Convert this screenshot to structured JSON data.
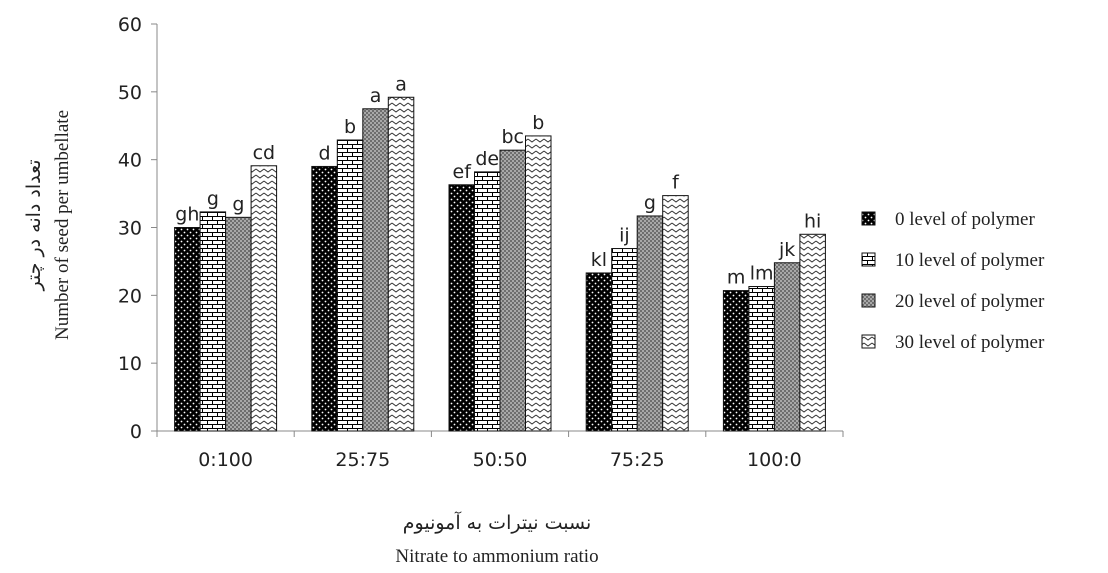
{
  "chart_data": {
    "type": "bar",
    "categories": [
      "0:100",
      "25:75",
      "50:50",
      "75:25",
      "100:0"
    ],
    "series": [
      {
        "name": "0 level of polymer",
        "values": [
          30,
          39,
          36.3,
          23.3,
          20.7
        ],
        "letters": [
          "gh",
          "d",
          "ef",
          "kl",
          "m"
        ]
      },
      {
        "name": "10 level of polymer",
        "values": [
          32.3,
          42.9,
          38.2,
          26.9,
          21.3
        ],
        "letters": [
          "g",
          "b",
          "de",
          "ij",
          "lm"
        ]
      },
      {
        "name": "20 level of polymer",
        "values": [
          31.5,
          47.5,
          41.4,
          31.7,
          24.8
        ],
        "letters": [
          "g",
          "a",
          "bc",
          "g",
          "jk"
        ]
      },
      {
        "name": "30 level of polymer",
        "values": [
          39.1,
          49.2,
          43.5,
          34.7,
          29
        ],
        "letters": [
          "cd",
          "a",
          "b",
          "f",
          "hi"
        ]
      }
    ],
    "ylabel_fa": "تعداد دانه در چتر",
    "ylabel_en": "Number of seed per umbellate",
    "xlabel_fa": "نسبت نیترات به آمونیوم",
    "xlabel_en": "Nitrate to ammonium ratio",
    "ylim": [
      0,
      60
    ],
    "yticks": [
      0,
      10,
      20,
      30,
      40,
      50,
      60
    ],
    "legend_position": "right",
    "grid": false
  }
}
